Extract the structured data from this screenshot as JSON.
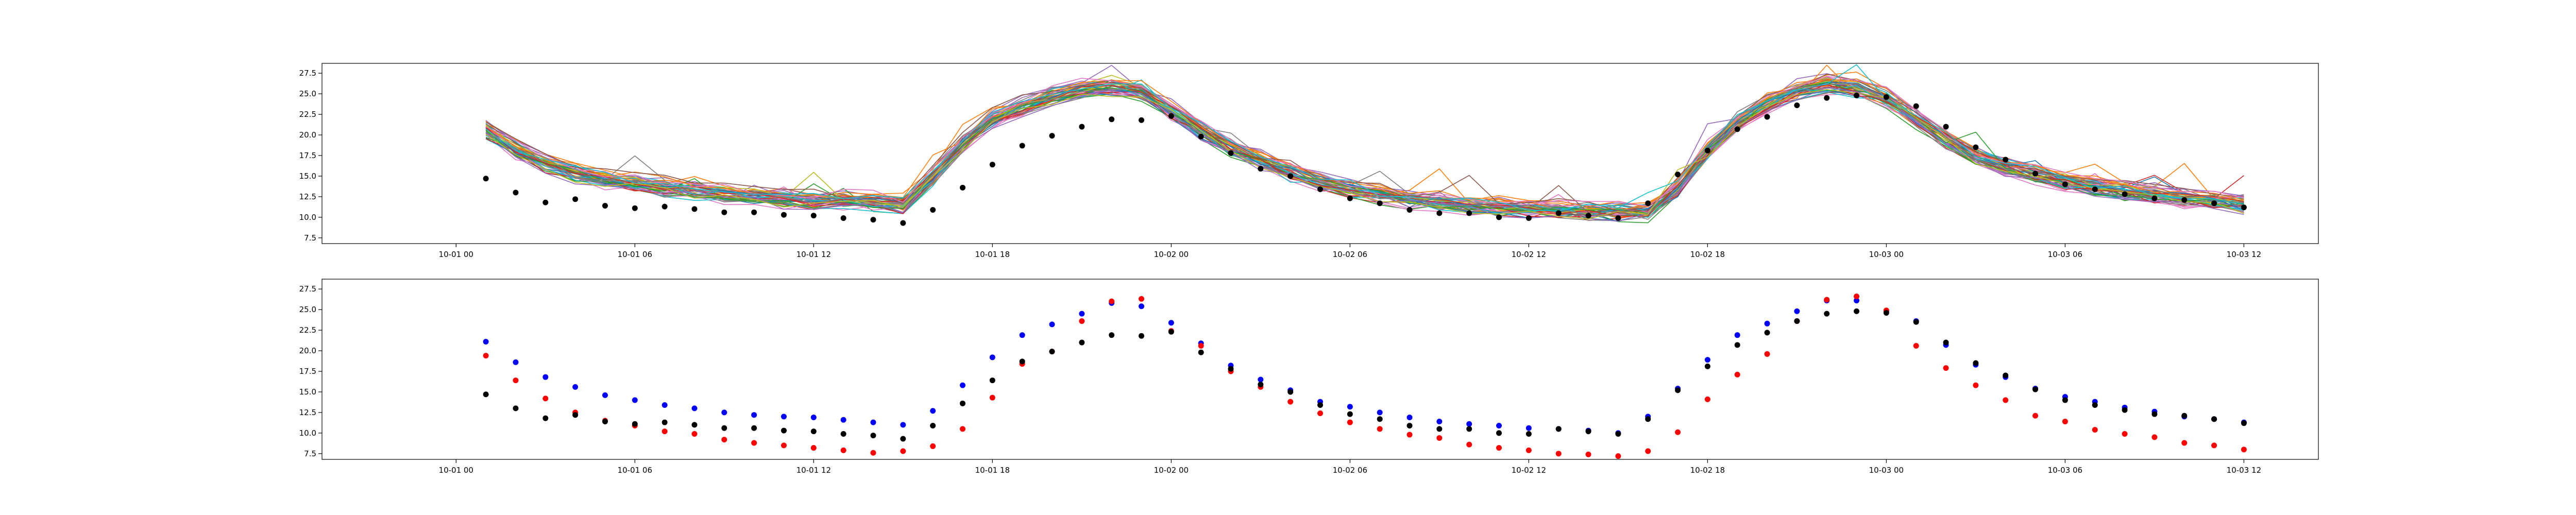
{
  "figure": {
    "background": "#ffffff"
  },
  "chart_data": [
    {
      "type": "line",
      "title": "",
      "xlabel": "",
      "ylabel": "",
      "grid": false,
      "x_ticks": [
        "10-01 00",
        "10-01 06",
        "10-01 12",
        "10-01 18",
        "10-02 00",
        "10-02 06",
        "10-02 12",
        "10-02 18",
        "10-03 00",
        "10-03 06",
        "10-03 12"
      ],
      "xlim_hours": [
        -4.5,
        62.5
      ],
      "ylim": [
        6.8,
        28.7
      ],
      "y_ticks": [
        "7.5",
        "10.0",
        "12.5",
        "15.0",
        "17.5",
        "20.0",
        "22.5",
        "25.0",
        "27.5"
      ],
      "hours": [
        1,
        2,
        3,
        4,
        5,
        6,
        7,
        8,
        9,
        10,
        11,
        12,
        13,
        14,
        15,
        16,
        17,
        18,
        19,
        20,
        21,
        22,
        23,
        24,
        25,
        26,
        27,
        28,
        29,
        30,
        31,
        32,
        33,
        34,
        35,
        36,
        37,
        38,
        39,
        40,
        41,
        42,
        43,
        44,
        45,
        46,
        47,
        48,
        49,
        50,
        51,
        52,
        53,
        54,
        55,
        56,
        57,
        58,
        59,
        60
      ],
      "observed": {
        "color": "#000000",
        "values": [
          14.7,
          13.0,
          11.8,
          12.2,
          11.4,
          11.1,
          11.3,
          11.0,
          10.6,
          10.6,
          10.3,
          10.2,
          9.9,
          9.7,
          9.3,
          10.9,
          13.6,
          16.4,
          18.7,
          19.9,
          21.0,
          21.9,
          21.8,
          22.3,
          19.8,
          17.8,
          15.9,
          15.0,
          13.4,
          12.3,
          11.7,
          10.9,
          10.5,
          10.5,
          10.0,
          9.9,
          10.5,
          10.2,
          9.9,
          11.7,
          15.2,
          18.1,
          20.7,
          22.2,
          23.6,
          24.5,
          24.8,
          24.6,
          23.5,
          21.0,
          18.5,
          17.0,
          15.3,
          14.0,
          13.4,
          12.8,
          12.3,
          12.1,
          11.7,
          11.2
        ]
      },
      "ensemble": {
        "members": 50,
        "mean": [
          20.7,
          18.3,
          16.6,
          15.4,
          14.6,
          14.1,
          13.7,
          13.3,
          12.9,
          12.6,
          12.3,
          12.1,
          12.0,
          12.0,
          11.5,
          15.0,
          19.0,
          22.0,
          23.5,
          24.8,
          25.6,
          25.8,
          25.2,
          23.0,
          20.5,
          18.5,
          17.0,
          15.5,
          14.4,
          13.5,
          12.8,
          12.2,
          11.8,
          11.5,
          11.2,
          11.0,
          10.9,
          10.8,
          10.6,
          10.6,
          13.5,
          18.0,
          21.6,
          23.7,
          25.4,
          26.1,
          25.8,
          24.5,
          22.0,
          19.5,
          17.5,
          16.2,
          15.2,
          14.4,
          13.7,
          13.2,
          12.8,
          12.4,
          12.0,
          11.6
        ],
        "palette": [
          "#1f77b4",
          "#ff7f0e",
          "#2ca02c",
          "#d62728",
          "#9467bd",
          "#8c564b",
          "#e377c2",
          "#7f7f7f",
          "#bcbd22",
          "#17becf"
        ]
      }
    },
    {
      "type": "scatter",
      "title": "",
      "xlabel": "",
      "ylabel": "",
      "grid": false,
      "x_ticks": [
        "10-01 00",
        "10-01 06",
        "10-01 12",
        "10-01 18",
        "10-02 00",
        "10-02 06",
        "10-02 12",
        "10-02 18",
        "10-03 00",
        "10-03 06",
        "10-03 12"
      ],
      "xlim_hours": [
        -4.5,
        62.5
      ],
      "ylim": [
        6.8,
        28.7
      ],
      "y_ticks": [
        "7.5",
        "10.0",
        "12.5",
        "15.0",
        "17.5",
        "20.0",
        "22.5",
        "25.0",
        "27.5"
      ],
      "hours": [
        1,
        2,
        3,
        4,
        5,
        6,
        7,
        8,
        9,
        10,
        11,
        12,
        13,
        14,
        15,
        16,
        17,
        18,
        19,
        20,
        21,
        22,
        23,
        24,
        25,
        26,
        27,
        28,
        29,
        30,
        31,
        32,
        33,
        34,
        35,
        36,
        37,
        38,
        39,
        40,
        41,
        42,
        43,
        44,
        45,
        46,
        47,
        48,
        49,
        50,
        51,
        52,
        53,
        54,
        55,
        56,
        57,
        58,
        59,
        60
      ],
      "series": [
        {
          "color": "#0000ff",
          "values": [
            21.1,
            18.6,
            16.8,
            15.6,
            14.6,
            14.0,
            13.4,
            13.0,
            12.5,
            12.2,
            12.0,
            11.9,
            11.6,
            11.3,
            11.0,
            12.7,
            15.8,
            19.2,
            21.9,
            23.2,
            24.5,
            25.8,
            25.4,
            23.4,
            20.9,
            18.2,
            16.5,
            15.2,
            13.8,
            13.2,
            12.5,
            11.9,
            11.4,
            11.1,
            10.9,
            10.6,
            10.5,
            10.3,
            10.0,
            12.0,
            15.4,
            18.9,
            21.9,
            23.3,
            24.8,
            26.1,
            26.1,
            24.8,
            23.6,
            20.7,
            18.3,
            16.8,
            15.4,
            14.4,
            13.8,
            13.1,
            12.6,
            12.0,
            11.7,
            11.3
          ]
        },
        {
          "color": "#ff0000",
          "values": [
            19.4,
            16.4,
            14.2,
            12.5,
            11.5,
            10.9,
            10.2,
            9.9,
            9.2,
            8.8,
            8.5,
            8.2,
            7.9,
            7.6,
            7.8,
            8.4,
            10.5,
            14.3,
            18.4,
            19.9,
            23.6,
            26.0,
            26.3,
            22.4,
            20.6,
            17.5,
            15.6,
            13.8,
            12.4,
            11.3,
            10.5,
            9.8,
            9.4,
            8.6,
            8.2,
            7.9,
            7.5,
            7.4,
            7.2,
            7.8,
            10.1,
            14.1,
            17.1,
            19.6,
            23.6,
            26.2,
            26.6,
            24.9,
            20.6,
            17.9,
            15.8,
            14.0,
            12.1,
            11.4,
            10.4,
            9.9,
            9.5,
            8.8,
            8.5,
            8.0
          ]
        },
        {
          "color": "#000000",
          "values": [
            14.7,
            13.0,
            11.8,
            12.2,
            11.4,
            11.1,
            11.3,
            11.0,
            10.6,
            10.6,
            10.3,
            10.2,
            9.9,
            9.7,
            9.3,
            10.9,
            13.6,
            16.4,
            18.7,
            19.9,
            21.0,
            21.9,
            21.8,
            22.3,
            19.8,
            17.8,
            15.9,
            15.0,
            13.4,
            12.3,
            11.7,
            10.9,
            10.5,
            10.5,
            10.0,
            9.9,
            10.5,
            10.2,
            9.9,
            11.7,
            15.2,
            18.1,
            20.7,
            22.2,
            23.6,
            24.5,
            24.8,
            24.6,
            23.5,
            21.0,
            18.5,
            17.0,
            15.3,
            14.0,
            13.4,
            12.8,
            12.3,
            12.1,
            11.7,
            11.2
          ]
        }
      ]
    }
  ]
}
